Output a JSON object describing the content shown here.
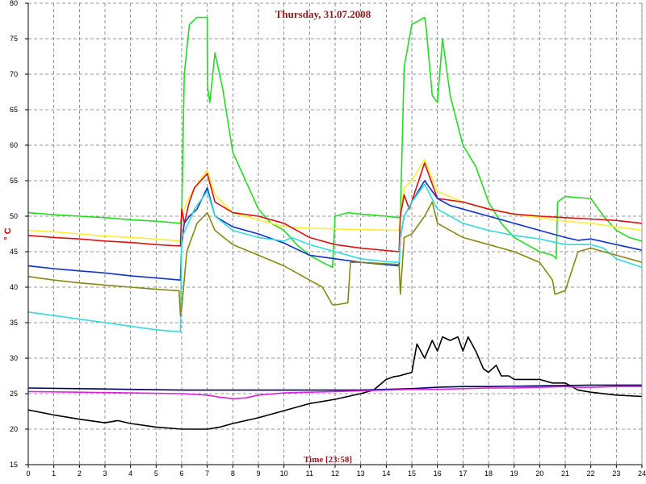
{
  "chart_data": {
    "type": "line",
    "title": "Thursday, 31.07.2008",
    "xlabel": "Time [23:58]",
    "ylabel": "° C",
    "xlim": [
      0,
      24
    ],
    "ylim": [
      15,
      80
    ],
    "xticks": [
      0,
      1,
      2,
      3,
      4,
      5,
      6,
      7,
      8,
      9,
      10,
      11,
      12,
      13,
      14,
      15,
      16,
      17,
      18,
      19,
      20,
      21,
      22,
      23,
      24
    ],
    "yticks": [
      15,
      20,
      25,
      30,
      35,
      40,
      45,
      50,
      55,
      60,
      65,
      70,
      75,
      80
    ],
    "grid": true,
    "series": [
      {
        "color": "#22dd22",
        "x": [
          0,
          1,
          2,
          3,
          4,
          5,
          5.95,
          6.0,
          6.1,
          6.3,
          6.6,
          7.0,
          7.02,
          7.1,
          7.3,
          7.6,
          8.0,
          8.5,
          9.0,
          9.5,
          10.0,
          10.5,
          11.0,
          11.5,
          11.9,
          12.0,
          12.5,
          13,
          14,
          14.5,
          14.55,
          14.7,
          15.0,
          15.5,
          15.55,
          15.8,
          16.0,
          16.2,
          16.5,
          17.0,
          17.5,
          18.0,
          18.5,
          19.0,
          19.5,
          20.0,
          20.5,
          20.65,
          20.7,
          21,
          21.5,
          22.0,
          22.5,
          23,
          23.5,
          24
        ],
        "y": [
          50.5,
          50.2,
          50,
          49.8,
          49.5,
          49.3,
          49,
          50,
          70,
          77,
          78,
          78,
          68,
          66,
          73,
          68,
          59,
          55,
          51,
          49,
          48,
          46,
          44.5,
          43.5,
          42.8,
          50,
          50.5,
          50.3,
          50,
          49.8,
          50,
          71,
          77,
          78,
          77,
          67,
          66,
          75,
          67,
          60,
          57,
          52,
          49,
          47,
          46,
          45,
          44.5,
          44,
          52,
          52.8,
          52.6,
          52.5,
          50,
          48,
          47,
          46.5
        ]
      },
      {
        "color": "#ffee33",
        "x": [
          0,
          1,
          2,
          3,
          4,
          5,
          5.95,
          6.0,
          6.2,
          6.5,
          7.0,
          7.3,
          8.0,
          9.0,
          10.0,
          11.0,
          12.0,
          13.0,
          14.5,
          14.55,
          14.7,
          15.0,
          15.5,
          16.0,
          17.0,
          18.0,
          19.0,
          20.0,
          21.0,
          22.0,
          23.0,
          24
        ],
        "y": [
          48,
          47.8,
          47.5,
          47.2,
          47,
          46.8,
          46.5,
          50,
          52,
          54,
          56.5,
          53,
          50.5,
          49.5,
          48.5,
          48.3,
          48.2,
          48.1,
          48,
          50,
          54,
          55,
          58,
          53.5,
          52,
          51,
          50.3,
          49.8,
          49.3,
          49,
          48.5,
          48
        ]
      },
      {
        "color": "#dd1111",
        "x": [
          0,
          1,
          2,
          3,
          4,
          5,
          5.95,
          6.0,
          6.1,
          6.3,
          6.5,
          7.0,
          7.3,
          8.0,
          9.0,
          10.0,
          11.0,
          12.0,
          13.0,
          14.5,
          14.55,
          14.7,
          14.9,
          15.5,
          16.0,
          17.0,
          18.0,
          19.0,
          20.0,
          21.0,
          22.0,
          23.0,
          24
        ],
        "y": [
          47.3,
          47,
          46.8,
          46.5,
          46.3,
          46,
          45.8,
          51,
          49,
          52,
          54,
          56,
          52,
          50.5,
          50,
          49,
          47,
          46,
          45.5,
          45,
          50,
          53,
          51,
          57.5,
          52.5,
          52,
          51,
          50.3,
          50,
          49.8,
          49.6,
          49.4,
          49
        ]
      },
      {
        "color": "#1133cc",
        "x": [
          0,
          1,
          2,
          3,
          4,
          5,
          5.95,
          6.0,
          6.1,
          6.3,
          6.6,
          7.0,
          7.3,
          8.0,
          9.0,
          10.0,
          11.0,
          12.0,
          13.0,
          14.5,
          14.55,
          14.7,
          15.0,
          15.5,
          16.0,
          16.5,
          17.0,
          18.0,
          19.0,
          20.0,
          21.0,
          21.5,
          22.0,
          23.0,
          24
        ],
        "y": [
          43,
          42.6,
          42.3,
          42,
          41.6,
          41.3,
          41,
          46,
          49,
          50,
          51,
          54,
          50,
          48.5,
          47.5,
          46.2,
          44.5,
          44,
          43.5,
          43,
          47,
          50,
          52,
          55,
          52.5,
          51.5,
          51,
          50,
          49,
          48,
          47,
          46.6,
          46.8,
          46,
          45.2
        ]
      },
      {
        "color": "#33dddd",
        "x": [
          0,
          1,
          2,
          3,
          4,
          5,
          5.95,
          6.0,
          6.2,
          6.5,
          7.0,
          7.3,
          8.0,
          9.0,
          10.0,
          10.3,
          11.0,
          12.0,
          13.0,
          14.0,
          14.5,
          14.55,
          14.7,
          15.0,
          15.5,
          16.0,
          17.0,
          18.0,
          19.0,
          20.0,
          21.0,
          22.0,
          22.5,
          23.0,
          24
        ],
        "y": [
          36.5,
          36,
          35.5,
          35,
          34.5,
          34,
          33.7,
          47,
          48.5,
          51,
          53.5,
          50,
          48,
          47,
          46.5,
          47,
          46,
          45,
          44,
          43.6,
          43.5,
          47,
          50,
          52,
          54.5,
          51,
          49,
          48,
          47.3,
          46.8,
          46,
          46,
          45.5,
          44,
          42.8
        ]
      },
      {
        "color": "#888811",
        "x": [
          0,
          1,
          2,
          3,
          4,
          5,
          5.9,
          5.95,
          6.0,
          6.2,
          6.6,
          7.0,
          7.3,
          8.0,
          9.0,
          10.0,
          11.0,
          11.5,
          11.9,
          12.0,
          12.5,
          12.6,
          13.0,
          14.5,
          14.55,
          14.7,
          15.0,
          15.5,
          15.8,
          16.0,
          17.0,
          18.0,
          19.0,
          20.0,
          20.5,
          20.6,
          21.0,
          21.5,
          22.0,
          23.0,
          24
        ],
        "y": [
          41.5,
          41,
          40.6,
          40.3,
          40,
          39.7,
          39.5,
          36,
          37,
          45,
          49,
          50.5,
          48,
          46,
          44.5,
          43,
          41,
          40,
          37.5,
          37.5,
          37.8,
          43.5,
          43.5,
          43.2,
          39,
          47,
          47.5,
          50,
          52,
          49,
          47,
          46,
          45,
          43.5,
          41,
          39,
          39.5,
          45,
          45.5,
          44.5,
          43.5
        ]
      },
      {
        "color": "#000000",
        "x": [
          0,
          1,
          2,
          3,
          3.5,
          4,
          5,
          6,
          7,
          7.5,
          8,
          9,
          10,
          11,
          12,
          13,
          13.5,
          14,
          14.3,
          14.5,
          15,
          15.2,
          15.5,
          15.8,
          16.0,
          16.2,
          16.5,
          16.8,
          17.0,
          17.2,
          17.5,
          17.8,
          18,
          18.3,
          18.5,
          18.8,
          19,
          19.5,
          20,
          20.5,
          21,
          21.5,
          22,
          23,
          24
        ],
        "y": [
          22.7,
          22,
          21.4,
          20.9,
          21.2,
          20.8,
          20.3,
          20,
          20,
          20.3,
          20.8,
          21.6,
          22.6,
          23.6,
          24.2,
          25,
          25.5,
          27,
          27.4,
          27.5,
          28,
          32,
          30,
          32.5,
          31,
          33,
          32.5,
          33,
          31,
          33,
          31,
          28.5,
          28,
          29,
          27.5,
          27.5,
          27,
          27,
          27,
          26.5,
          26.5,
          25.5,
          25.2,
          24.8,
          24.6
        ]
      },
      {
        "color": "#000066",
        "x": [
          0,
          2,
          4,
          6,
          8,
          10,
          12,
          13,
          14,
          15,
          16,
          17,
          18,
          20,
          22,
          24
        ],
        "y": [
          25.8,
          25.7,
          25.6,
          25.5,
          25.5,
          25.5,
          25.5,
          25.5,
          25.6,
          25.7,
          25.9,
          26,
          26,
          26.1,
          26.2,
          26.2
        ]
      },
      {
        "color": "#dd22dd",
        "x": [
          0,
          2,
          4,
          6,
          7,
          7.5,
          8,
          8.5,
          9,
          10,
          11,
          12,
          13,
          14,
          15,
          16,
          17,
          18,
          19,
          20,
          21,
          21.5,
          22,
          23,
          24
        ],
        "y": [
          25.3,
          25.2,
          25.1,
          25,
          24.8,
          24.5,
          24.3,
          24.4,
          24.8,
          25.1,
          25.2,
          25.3,
          25.4,
          25.5,
          25.6,
          25.6,
          25.7,
          25.8,
          25.8,
          25.9,
          26,
          25.9,
          25.9,
          26,
          26
        ]
      }
    ]
  }
}
